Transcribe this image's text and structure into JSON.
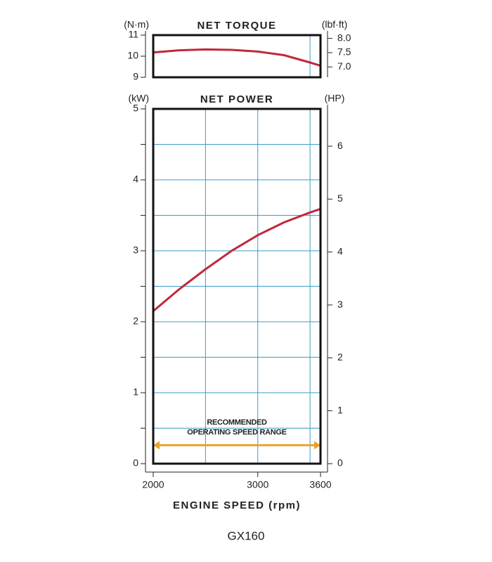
{
  "chart_data": [
    {
      "type": "line",
      "title": "NET TORQUE",
      "ylabel": "(N·m)",
      "y2label": "(lbf·ft)",
      "x": [
        2000,
        2250,
        2500,
        2750,
        3000,
        3250,
        3500,
        3600
      ],
      "series": [
        {
          "name": "Net torque",
          "color": "#c0283c",
          "values": [
            10.18,
            10.28,
            10.32,
            10.3,
            10.22,
            10.05,
            9.7,
            9.55
          ]
        }
      ],
      "xlim": [
        2000,
        3600
      ],
      "xgrid": [
        3500
      ],
      "ylim": [
        9,
        11
      ],
      "yticks": [
        9,
        10,
        11
      ],
      "y2lim": [
        6.638,
        8.114
      ],
      "y2ticks": [
        {
          "value": 7.0,
          "label": "7.0"
        },
        7.5,
        {
          "value": 8.0,
          "label": "8.0"
        }
      ]
    },
    {
      "type": "line",
      "title": "NET POWER",
      "ylabel": "(kW)",
      "y2label": "(HP)",
      "xlabel": "ENGINE SPEED (rpm)",
      "x": [
        2000,
        2250,
        2500,
        2750,
        3000,
        3250,
        3500,
        3600
      ],
      "series": [
        {
          "name": "Net power",
          "color": "#c0283c",
          "values": [
            2.15,
            2.46,
            2.74,
            3.0,
            3.22,
            3.4,
            3.54,
            3.59
          ]
        }
      ],
      "xlim": [
        2000,
        3600
      ],
      "xticks": [
        2000,
        3000,
        3600
      ],
      "xgrid": [
        2500,
        3000,
        3500
      ],
      "ylim": [
        0,
        5
      ],
      "yticks": [
        0,
        1,
        2,
        3,
        4,
        5
      ],
      "ygrid": [
        0.5,
        1,
        1.5,
        2,
        2.5,
        3,
        3.5,
        4,
        4.5
      ],
      "y2lim": [
        0,
        6.705
      ],
      "y2ticks": [
        0,
        1,
        2,
        3,
        4,
        5,
        6
      ],
      "annotation": {
        "lines": [
          "RECOMMENDED",
          "OPERATING SPEED RANGE"
        ],
        "range": [
          2000,
          3600
        ],
        "y": 0.26,
        "color": "#e8a030"
      }
    }
  ],
  "caption": "GX160"
}
